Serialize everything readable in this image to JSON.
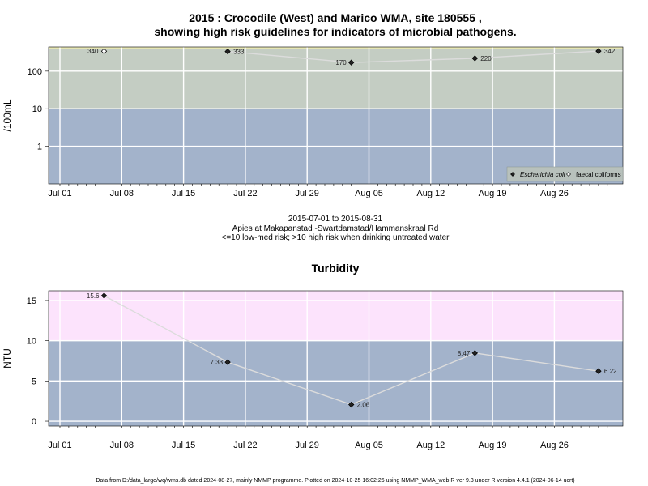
{
  "chart_data": [
    {
      "type": "line",
      "title_line1": "2015 : Crocodile (West) and Marico WMA, site 180555 ,",
      "title_line2": "showing high risk guidelines for indicators of microbial pathogens.",
      "ylabel": "/100mL",
      "yscale": "log",
      "x_ticks": [
        "Jul 01",
        "Jul 08",
        "Jul 15",
        "Jul 22",
        "Jul 29",
        "Aug 05",
        "Aug 12",
        "Aug 19",
        "Aug 26"
      ],
      "y_ticks": [
        "1",
        "10",
        "100"
      ],
      "bands": [
        {
          "from": 0.1,
          "to": 10,
          "color": "#a3b3cb"
        },
        {
          "from": 10,
          "to": 440,
          "color": "#c4cdc3"
        }
      ],
      "top_line_color": "#e6e6b4",
      "series": [
        {
          "name": "Escherichia coli",
          "marker": "filled-diamond",
          "points": [
            {
              "date": "2015-07-20",
              "value": 333,
              "label": "333"
            },
            {
              "date": "2015-08-03",
              "value": 170,
              "label": "170"
            },
            {
              "date": "2015-08-17",
              "value": 220,
              "label": "220"
            },
            {
              "date": "2015-08-31",
              "value": 342,
              "label": "342"
            }
          ]
        },
        {
          "name": "faecal coliforms",
          "marker": "open-diamond",
          "points": [
            {
              "date": "2015-07-06",
              "value": 340,
              "label": "340"
            }
          ]
        }
      ],
      "legend": "bottom-right"
    },
    {
      "type": "line",
      "title": "Turbidity",
      "ylabel": "NTU",
      "x_ticks": [
        "Jul 01",
        "Jul 08",
        "Jul 15",
        "Jul 22",
        "Jul 29",
        "Aug 05",
        "Aug 12",
        "Aug 19",
        "Aug 26"
      ],
      "y_ticks": [
        "0",
        "5",
        "10",
        "15"
      ],
      "ylim": [
        -0.6,
        16.2
      ],
      "bands": [
        {
          "from": -0.6,
          "to": 10,
          "color": "#a3b3cb"
        },
        {
          "from": 10,
          "to": 16.2,
          "color": "#fce3fc"
        }
      ],
      "series": [
        {
          "name": "Turbidity",
          "marker": "filled-diamond",
          "points": [
            {
              "date": "2015-07-06",
              "value": 15.6,
              "label": "15.6"
            },
            {
              "date": "2015-07-20",
              "value": 7.33,
              "label": "7.33"
            },
            {
              "date": "2015-08-03",
              "value": 2.06,
              "label": "2.06"
            },
            {
              "date": "2015-08-17",
              "value": 8.47,
              "label": "8.47"
            },
            {
              "date": "2015-08-31",
              "value": 6.22,
              "label": "6.22"
            }
          ]
        }
      ]
    }
  ],
  "middle_text": {
    "line1": "2015-07-01 to 2015-08-31",
    "line2": "Apies at Makapanstad -Swartdamstad/Hammanskraal Rd",
    "line3": "<=10 low-med risk; >10 high risk when drinking untreated water"
  },
  "footer": "Data from D:/data_large/wq/wms.db dated 2024-08-27, mainly NMMP programme. Plotted on 2024-10-25 16:02:26 using NMMP_WMA_web.R ver 9.3 under R version 4.4.1 (2024-06-14 ucrt)"
}
